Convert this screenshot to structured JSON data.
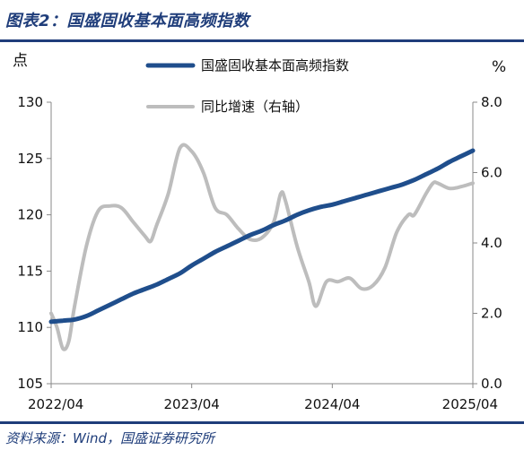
{
  "header": {
    "title": "图表2：国盛固收基本面高频指数"
  },
  "footer": {
    "source": "资料来源：Wind，国盛证券研究所"
  },
  "chart_data": {
    "type": "line",
    "left_axis_unit": "点",
    "right_axis_unit": "%",
    "x_ticks": [
      "2022/04",
      "2023/04",
      "2024/04",
      "2025/04"
    ],
    "y_left": {
      "lim": [
        105,
        130
      ],
      "ticks": [
        "105",
        "110",
        "115",
        "120",
        "125",
        "130"
      ]
    },
    "y_right": {
      "lim": [
        0,
        8
      ],
      "ticks": [
        "0.0",
        "2.0",
        "4.0",
        "6.0",
        "8.0"
      ]
    },
    "grid": false,
    "legend_position": "top-center",
    "x_start": "2022/04",
    "series": [
      {
        "name": "国盛固收基本面高频指数",
        "axis": "left",
        "color": "#1f4e8c",
        "values": [
          [
            0,
            110.5
          ],
          [
            1,
            110.6
          ],
          [
            2,
            110.7
          ],
          [
            3,
            111.0
          ],
          [
            4,
            111.5
          ],
          [
            5,
            112.0
          ],
          [
            6,
            112.5
          ],
          [
            7,
            113.0
          ],
          [
            8,
            113.4
          ],
          [
            9,
            113.8
          ],
          [
            10,
            114.3
          ],
          [
            11,
            114.8
          ],
          [
            12,
            115.5
          ],
          [
            13,
            116.1
          ],
          [
            14,
            116.7
          ],
          [
            15,
            117.2
          ],
          [
            16,
            117.7
          ],
          [
            17,
            118.2
          ],
          [
            18,
            118.6
          ],
          [
            19,
            119.1
          ],
          [
            20,
            119.5
          ],
          [
            21,
            120.0
          ],
          [
            22,
            120.4
          ],
          [
            23,
            120.7
          ],
          [
            24,
            120.9
          ],
          [
            25,
            121.2
          ],
          [
            26,
            121.5
          ],
          [
            27,
            121.8
          ],
          [
            28,
            122.1
          ],
          [
            29,
            122.4
          ],
          [
            30,
            122.7
          ],
          [
            31,
            123.1
          ],
          [
            32,
            123.6
          ],
          [
            33,
            124.1
          ],
          [
            34,
            124.7
          ],
          [
            35,
            125.2
          ],
          [
            36,
            125.7
          ]
        ]
      },
      {
        "name": "同比增速（右轴）",
        "axis": "right",
        "color": "#bdbdbd",
        "values": [
          [
            0,
            2.0
          ],
          [
            0.5,
            1.6
          ],
          [
            1,
            1.0
          ],
          [
            1.5,
            1.2
          ],
          [
            2,
            2.2
          ],
          [
            3,
            3.9
          ],
          [
            4,
            4.9
          ],
          [
            5,
            5.05
          ],
          [
            6,
            5.0
          ],
          [
            7,
            4.6
          ],
          [
            8,
            4.2
          ],
          [
            8.5,
            4.05
          ],
          [
            9,
            4.5
          ],
          [
            10,
            5.4
          ],
          [
            11,
            6.7
          ],
          [
            12,
            6.6
          ],
          [
            13,
            6.0
          ],
          [
            14,
            5.0
          ],
          [
            15,
            4.8
          ],
          [
            16,
            4.4
          ],
          [
            17,
            4.1
          ],
          [
            18,
            4.15
          ],
          [
            19,
            4.6
          ],
          [
            19.6,
            5.4
          ],
          [
            20,
            5.2
          ],
          [
            21,
            3.9
          ],
          [
            22,
            2.9
          ],
          [
            22.6,
            2.2
          ],
          [
            23.5,
            2.9
          ],
          [
            24.5,
            2.9
          ],
          [
            25.5,
            3.0
          ],
          [
            26.5,
            2.7
          ],
          [
            27.5,
            2.8
          ],
          [
            28.5,
            3.3
          ],
          [
            29.5,
            4.3
          ],
          [
            30.5,
            4.8
          ],
          [
            31,
            4.8
          ],
          [
            32,
            5.4
          ],
          [
            32.6,
            5.7
          ],
          [
            33,
            5.7
          ],
          [
            34,
            5.55
          ],
          [
            35,
            5.6
          ],
          [
            36,
            5.7
          ]
        ]
      }
    ]
  }
}
